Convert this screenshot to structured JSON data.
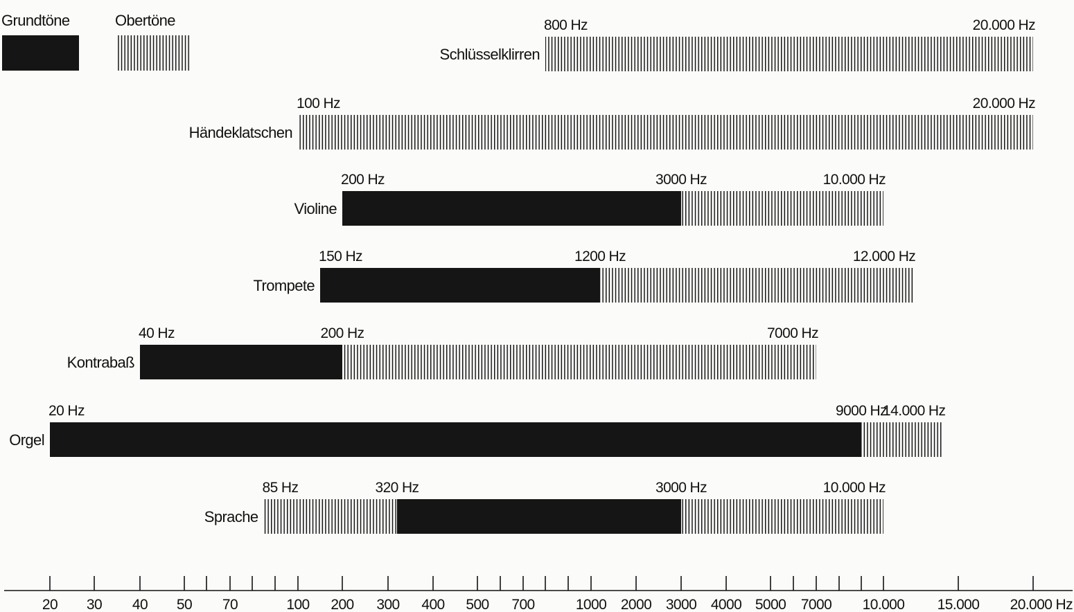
{
  "chart_data": {
    "type": "bar",
    "legend": {
      "placement": "top-left",
      "fundamental_label": "Grundtöne",
      "overtone_label": "Obertöne"
    },
    "colors": {
      "fundamental": "#151515",
      "overtone": "#151515",
      "background": "#fbfbf9"
    },
    "series": [
      {
        "name": "Schlüsselklirren",
        "segments": [
          {
            "kind": "overtone",
            "from": 800,
            "to": 20000
          }
        ],
        "labels": [
          {
            "value": 800,
            "text": "800 Hz",
            "anchor": "start"
          },
          {
            "value": 20000,
            "text": "20.000 Hz",
            "anchor": "end"
          }
        ]
      },
      {
        "name": "Händeklatschen",
        "segments": [
          {
            "kind": "overtone",
            "from": 100,
            "to": 20000
          }
        ],
        "labels": [
          {
            "value": 100,
            "text": "100 Hz",
            "anchor": "start"
          },
          {
            "value": 20000,
            "text": "20.000 Hz",
            "anchor": "end"
          }
        ]
      },
      {
        "name": "Violine",
        "segments": [
          {
            "kind": "fundamental",
            "from": 200,
            "to": 3000
          },
          {
            "kind": "overtone",
            "from": 3000,
            "to": 10000
          }
        ],
        "labels": [
          {
            "value": 200,
            "text": "200 Hz",
            "anchor": "start"
          },
          {
            "value": 3000,
            "text": "3000 Hz",
            "anchor": "middle"
          },
          {
            "value": 10000,
            "text": "10.000 Hz",
            "anchor": "end"
          }
        ]
      },
      {
        "name": "Trompete",
        "segments": [
          {
            "kind": "fundamental",
            "from": 150,
            "to": 1200
          },
          {
            "kind": "overtone",
            "from": 1200,
            "to": 12000
          }
        ],
        "labels": [
          {
            "value": 150,
            "text": "150 Hz",
            "anchor": "start"
          },
          {
            "value": 1200,
            "text": "1200 Hz",
            "anchor": "middle"
          },
          {
            "value": 12000,
            "text": "12.000 Hz",
            "anchor": "end"
          }
        ]
      },
      {
        "name": "Kontrabaß",
        "segments": [
          {
            "kind": "fundamental",
            "from": 40,
            "to": 200
          },
          {
            "kind": "overtone",
            "from": 200,
            "to": 7000
          }
        ],
        "labels": [
          {
            "value": 40,
            "text": "40 Hz",
            "anchor": "start"
          },
          {
            "value": 200,
            "text": "200 Hz",
            "anchor": "middle"
          },
          {
            "value": 7000,
            "text": "7000 Hz",
            "anchor": "end"
          }
        ]
      },
      {
        "name": "Orgel",
        "segments": [
          {
            "kind": "fundamental",
            "from": 20,
            "to": 9000
          },
          {
            "kind": "overtone",
            "from": 9000,
            "to": 14000
          }
        ],
        "labels": [
          {
            "value": 20,
            "text": "20 Hz",
            "anchor": "start"
          },
          {
            "value": 9000,
            "text": "9000 Hz",
            "anchor": "middle"
          },
          {
            "value": 14000,
            "text": "14.000 Hz",
            "anchor": "end"
          }
        ]
      },
      {
        "name": "Sprache",
        "segments": [
          {
            "kind": "overtone",
            "from": 85,
            "to": 320
          },
          {
            "kind": "fundamental",
            "from": 320,
            "to": 3000
          },
          {
            "kind": "overtone",
            "from": 3000,
            "to": 10000
          }
        ],
        "labels": [
          {
            "value": 85,
            "text": "85 Hz",
            "anchor": "start"
          },
          {
            "value": 320,
            "text": "320 Hz",
            "anchor": "middle"
          },
          {
            "value": 3000,
            "text": "3000 Hz",
            "anchor": "middle"
          },
          {
            "value": 10000,
            "text": "10.000 Hz",
            "anchor": "end"
          }
        ]
      }
    ],
    "x_axis": {
      "unit": "Hz",
      "scale": "piecewise",
      "range": [
        20,
        20000
      ],
      "tick_values": [
        20,
        30,
        40,
        50,
        60,
        70,
        80,
        90,
        100,
        200,
        300,
        400,
        500,
        600,
        700,
        800,
        900,
        1000,
        2000,
        3000,
        4000,
        5000,
        6000,
        7000,
        8000,
        9000,
        10000,
        15000,
        20000
      ],
      "tick_labels": [
        {
          "value": 20,
          "text": "20"
        },
        {
          "value": 30,
          "text": "30"
        },
        {
          "value": 40,
          "text": "40"
        },
        {
          "value": 50,
          "text": "50"
        },
        {
          "value": 70,
          "text": "70"
        },
        {
          "value": 100,
          "text": "100"
        },
        {
          "value": 200,
          "text": "200"
        },
        {
          "value": 300,
          "text": "300"
        },
        {
          "value": 400,
          "text": "400"
        },
        {
          "value": 500,
          "text": "500"
        },
        {
          "value": 700,
          "text": "700"
        },
        {
          "value": 1000,
          "text": "1000"
        },
        {
          "value": 2000,
          "text": "2000"
        },
        {
          "value": 3000,
          "text": "3000"
        },
        {
          "value": 4000,
          "text": "4000"
        },
        {
          "value": 5000,
          "text": "5000"
        },
        {
          "value": 7000,
          "text": "7000"
        },
        {
          "value": 10000,
          "text": "10.000"
        },
        {
          "value": 15000,
          "text": "15.000"
        },
        {
          "value": 20000,
          "text": "20.000 Hz"
        }
      ]
    },
    "grid": false
  }
}
